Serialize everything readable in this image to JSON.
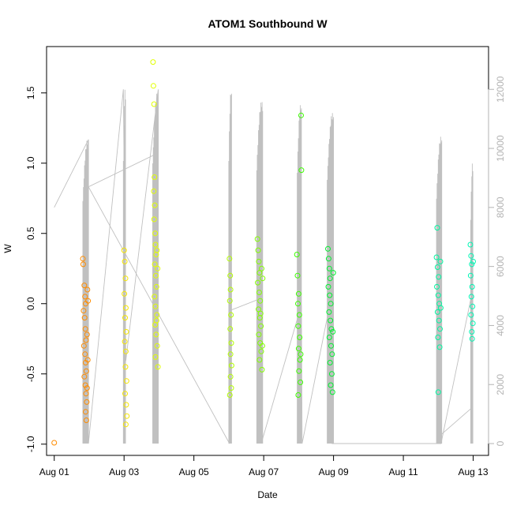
{
  "chart_data": {
    "type": "scatter",
    "title": "ATOM1 Southbound W",
    "xlabel": "Date",
    "ylabel": "W",
    "x_ticks": [
      "Aug 01",
      "Aug 03",
      "Aug 05",
      "Aug 07",
      "Aug 09",
      "Aug 11",
      "Aug 13"
    ],
    "x_tick_days": [
      1,
      3,
      5,
      7,
      9,
      11,
      13
    ],
    "xlim_days": [
      0.78,
      13.44
    ],
    "y_ticks": [
      "-1.0",
      "-0.5",
      "0.0",
      "0.5",
      "1.0",
      "1.5"
    ],
    "y_tick_values": [
      -1.0,
      -0.5,
      0.0,
      0.5,
      1.0,
      1.5
    ],
    "ylim": [
      -1.08,
      1.83
    ],
    "y2_ticks": [
      "0",
      "2000",
      "4000",
      "6000",
      "8000",
      "10000",
      "12000"
    ],
    "y2_tick_values": [
      0,
      2000,
      4000,
      6000,
      8000,
      10000,
      12000
    ],
    "y2lim": [
      -400,
      13450
    ],
    "colors": {
      "axis": "#000000",
      "secondary": "#c0c0c0",
      "secondary_axis": "#b3b3b3"
    },
    "series": [
      {
        "color": "#ff8c00",
        "points": [
          [
            1.0,
            -0.99
          ],
          [
            1.82,
            0.32
          ],
          [
            1.83,
            0.28
          ],
          [
            1.86,
            0.13
          ],
          [
            1.88,
            0.05
          ],
          [
            1.9,
            0.0
          ],
          [
            1.84,
            -0.05
          ],
          [
            1.87,
            -0.1
          ],
          [
            1.89,
            -0.18
          ],
          [
            1.91,
            -0.26
          ],
          [
            1.85,
            -0.3
          ],
          [
            1.88,
            -0.36
          ],
          [
            1.9,
            -0.42
          ],
          [
            1.92,
            -0.48
          ],
          [
            1.86,
            -0.52
          ],
          [
            1.89,
            -0.58
          ],
          [
            1.91,
            -0.64
          ],
          [
            1.93,
            -0.7
          ],
          [
            1.9,
            -0.77
          ],
          [
            1.92,
            -0.83
          ],
          [
            1.95,
            0.1
          ],
          [
            1.94,
            -0.22
          ],
          [
            1.96,
            -0.4
          ],
          [
            1.94,
            -0.6
          ],
          [
            1.97,
            0.02
          ]
        ]
      },
      {
        "color": "#f5e600",
        "points": [
          [
            3.0,
            0.38
          ],
          [
            3.02,
            0.3
          ],
          [
            3.04,
            0.18
          ],
          [
            3.01,
            0.07
          ],
          [
            3.05,
            -0.03
          ],
          [
            3.03,
            -0.1
          ],
          [
            3.06,
            -0.2
          ],
          [
            3.02,
            -0.27
          ],
          [
            3.05,
            -0.34
          ],
          [
            3.04,
            -0.45
          ],
          [
            3.07,
            -0.55
          ],
          [
            3.03,
            -0.64
          ],
          [
            3.06,
            -0.72
          ],
          [
            3.08,
            -0.8
          ],
          [
            3.05,
            -0.86
          ]
        ]
      },
      {
        "color": "#e1ff00",
        "points": [
          [
            3.83,
            1.72
          ],
          [
            3.84,
            1.55
          ],
          [
            3.86,
            1.42
          ],
          [
            3.87,
            0.9
          ],
          [
            3.85,
            0.8
          ],
          [
            3.88,
            0.7
          ],
          [
            3.86,
            0.6
          ],
          [
            3.89,
            0.5
          ],
          [
            3.9,
            0.42
          ],
          [
            3.92,
            0.35
          ],
          [
            3.88,
            0.28
          ],
          [
            3.91,
            0.2
          ],
          [
            3.93,
            0.12
          ],
          [
            3.87,
            0.05
          ],
          [
            3.9,
            -0.02
          ],
          [
            3.94,
            -0.08
          ],
          [
            3.89,
            -0.15
          ],
          [
            3.92,
            -0.22
          ],
          [
            3.95,
            -0.3
          ],
          [
            3.9,
            -0.38
          ],
          [
            3.97,
            -0.45
          ],
          [
            3.94,
            0.38
          ],
          [
            3.96,
            0.25
          ],
          [
            3.93,
            -0.12
          ]
        ]
      },
      {
        "color": "#b4ff00",
        "points": [
          [
            6.02,
            0.32
          ],
          [
            6.04,
            0.2
          ],
          [
            6.05,
            0.1
          ],
          [
            6.03,
            0.02
          ],
          [
            6.06,
            -0.08
          ],
          [
            6.04,
            -0.18
          ],
          [
            6.07,
            -0.28
          ],
          [
            6.05,
            -0.36
          ],
          [
            6.08,
            -0.44
          ],
          [
            6.05,
            -0.52
          ],
          [
            6.07,
            -0.6
          ],
          [
            6.03,
            -0.65
          ]
        ]
      },
      {
        "color": "#82ff00",
        "points": [
          [
            6.82,
            0.46
          ],
          [
            6.84,
            0.38
          ],
          [
            6.86,
            0.3
          ],
          [
            6.88,
            0.22
          ],
          [
            6.83,
            0.15
          ],
          [
            6.87,
            0.08
          ],
          [
            6.9,
            0.02
          ],
          [
            6.85,
            -0.04
          ],
          [
            6.89,
            -0.1
          ],
          [
            6.92,
            -0.16
          ],
          [
            6.86,
            -0.22
          ],
          [
            6.9,
            -0.28
          ],
          [
            6.93,
            -0.34
          ],
          [
            6.88,
            -0.4
          ],
          [
            6.95,
            -0.47
          ],
          [
            6.94,
            0.25
          ],
          [
            6.91,
            -0.07
          ],
          [
            6.97,
            0.18
          ],
          [
            6.96,
            -0.3
          ]
        ]
      },
      {
        "color": "#3cff00",
        "points": [
          [
            7.95,
            0.35
          ],
          [
            7.97,
            0.2
          ],
          [
            8.0,
            0.07
          ],
          [
            7.98,
            0.0
          ],
          [
            8.02,
            -0.08
          ],
          [
            7.99,
            -0.16
          ],
          [
            8.03,
            -0.24
          ],
          [
            8.0,
            -0.32
          ],
          [
            8.04,
            -0.4
          ],
          [
            8.01,
            -0.48
          ],
          [
            8.05,
            -0.56
          ],
          [
            7.99,
            -0.65
          ],
          [
            8.07,
            1.34
          ],
          [
            8.08,
            0.95
          ],
          [
            8.06,
            -0.36
          ]
        ]
      },
      {
        "color": "#00f030",
        "points": [
          [
            8.84,
            0.39
          ],
          [
            8.86,
            0.32
          ],
          [
            8.88,
            0.25
          ],
          [
            8.9,
            0.18
          ],
          [
            8.85,
            0.12
          ],
          [
            8.89,
            0.06
          ],
          [
            8.92,
            0.0
          ],
          [
            8.87,
            -0.06
          ],
          [
            8.91,
            -0.12
          ],
          [
            8.94,
            -0.18
          ],
          [
            8.88,
            -0.24
          ],
          [
            8.93,
            -0.3
          ],
          [
            8.96,
            -0.36
          ],
          [
            8.9,
            -0.42
          ],
          [
            8.95,
            -0.5
          ],
          [
            8.92,
            -0.58
          ],
          [
            8.97,
            -0.63
          ],
          [
            8.99,
            0.22
          ],
          [
            8.98,
            -0.2
          ]
        ]
      },
      {
        "color": "#00f5a0",
        "points": [
          [
            11.97,
            0.54
          ],
          [
            11.95,
            0.33
          ],
          [
            11.98,
            0.26
          ],
          [
            12.01,
            0.19
          ],
          [
            11.96,
            0.12
          ],
          [
            12.0,
            0.06
          ],
          [
            12.03,
            0.0
          ],
          [
            11.98,
            -0.06
          ],
          [
            12.02,
            -0.12
          ],
          [
            12.05,
            -0.18
          ],
          [
            11.99,
            -0.24
          ],
          [
            12.04,
            -0.31
          ],
          [
            12.0,
            -0.63
          ],
          [
            12.06,
            0.3
          ],
          [
            12.07,
            -0.03
          ]
        ]
      },
      {
        "color": "#00f5b4",
        "points": [
          [
            12.92,
            0.42
          ],
          [
            12.94,
            0.34
          ],
          [
            12.96,
            0.28
          ],
          [
            12.93,
            0.2
          ],
          [
            12.97,
            0.12
          ],
          [
            12.95,
            0.05
          ],
          [
            12.98,
            -0.02
          ],
          [
            12.94,
            -0.08
          ],
          [
            12.99,
            -0.14
          ],
          [
            12.96,
            -0.2
          ],
          [
            12.97,
            -0.25
          ],
          [
            13.0,
            0.3
          ]
        ]
      }
    ],
    "secondary_line": {
      "color": "#c0c0c0",
      "axis": "right",
      "points": [
        [
          1.0,
          8000
        ],
        [
          1.98,
          10300
        ],
        [
          1.98,
          0
        ],
        [
          2.98,
          12000
        ],
        [
          3.05,
          2800
        ],
        [
          3.98,
          12000
        ],
        [
          3.98,
          0
        ],
        [
          3.98,
          9800
        ],
        [
          3.9,
          9800
        ],
        [
          1.98,
          8700
        ],
        [
          3.98,
          4400
        ],
        [
          6.02,
          0
        ],
        [
          6.02,
          4500
        ],
        [
          6.88,
          4900
        ],
        [
          6.93,
          8500
        ],
        [
          6.93,
          0
        ],
        [
          8.08,
          4700
        ],
        [
          8.1,
          0
        ],
        [
          8.91,
          4800
        ],
        [
          8.96,
          2500
        ],
        [
          8.96,
          0
        ],
        [
          12.08,
          0
        ],
        [
          12.95,
          5000
        ],
        [
          12.95,
          1200
        ],
        [
          12.08,
          300
        ]
      ]
    },
    "secondary_bursts": [
      {
        "x_start": 1.82,
        "x_end": 1.98,
        "top": 10300,
        "bottom": 0
      },
      {
        "x_start": 2.98,
        "x_end": 3.04,
        "top": 12000,
        "bottom": 0
      },
      {
        "x_start": 3.82,
        "x_end": 3.98,
        "top": 11900,
        "bottom": 0
      },
      {
        "x_start": 6.0,
        "x_end": 6.08,
        "top": 12000,
        "bottom": 0
      },
      {
        "x_start": 6.8,
        "x_end": 6.97,
        "top": 11600,
        "bottom": 0
      },
      {
        "x_start": 7.96,
        "x_end": 8.08,
        "top": 11500,
        "bottom": 0
      },
      {
        "x_start": 8.82,
        "x_end": 9.0,
        "top": 11200,
        "bottom": 0
      },
      {
        "x_start": 11.95,
        "x_end": 12.1,
        "top": 10400,
        "bottom": 0
      },
      {
        "x_start": 12.93,
        "x_end": 12.99,
        "top": 9500,
        "bottom": 0
      }
    ]
  }
}
